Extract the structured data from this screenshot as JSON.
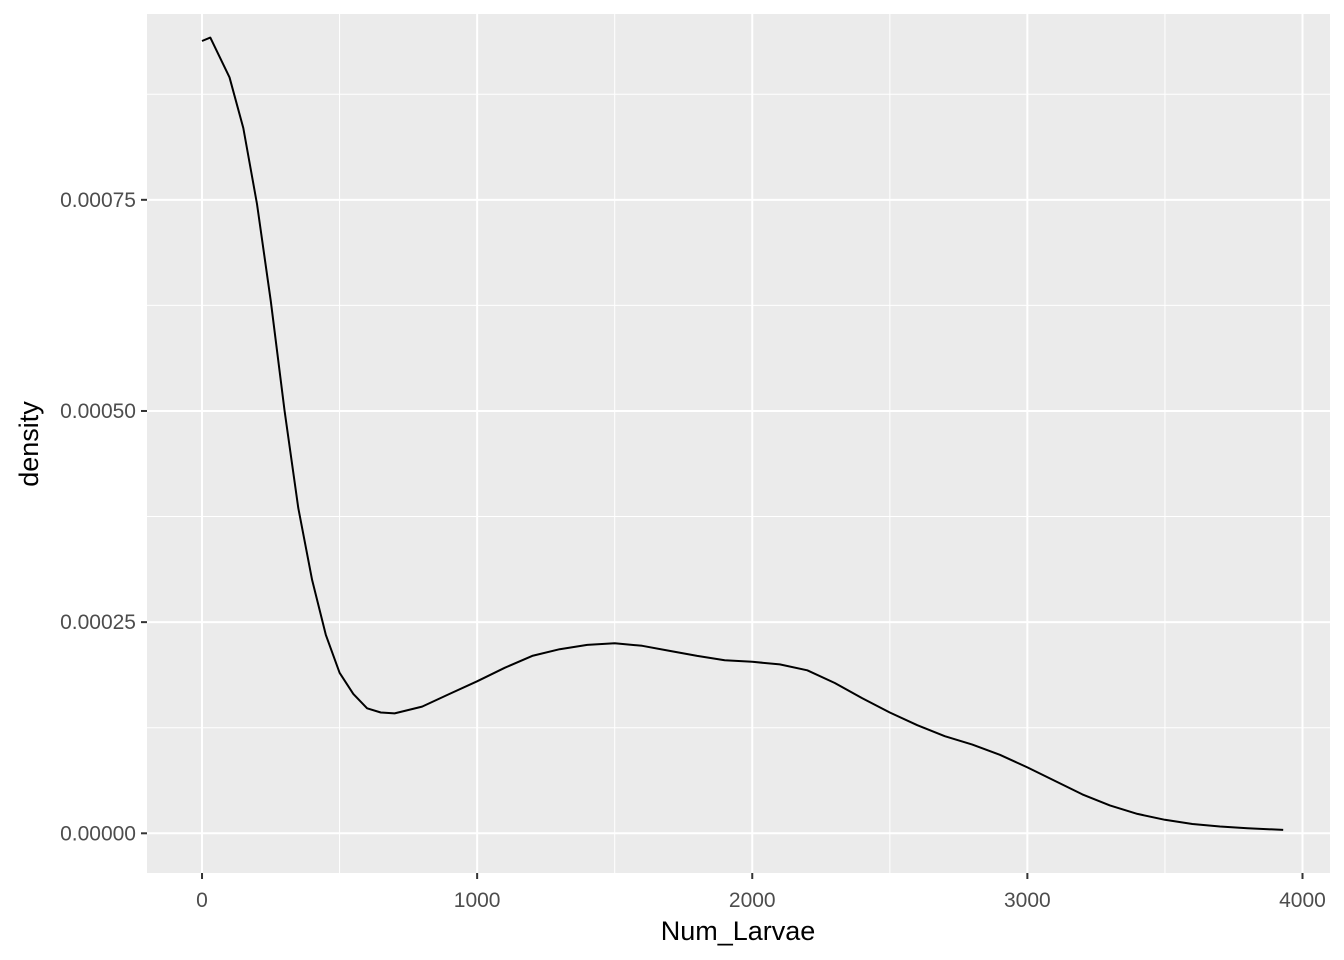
{
  "chart_data": {
    "type": "line",
    "title": "",
    "xlabel": "Num_Larvae",
    "ylabel": "density",
    "xlim": [
      -200,
      4100
    ],
    "ylim": [
      -4.7e-05,
      0.00097
    ],
    "x_ticks": [
      0,
      1000,
      2000,
      3000,
      4000
    ],
    "x_tick_labels": [
      "0",
      "1000",
      "2000",
      "3000",
      "4000"
    ],
    "x_minor_ticks": [
      500,
      1500,
      2500,
      3500
    ],
    "y_ticks": [
      0,
      0.00025,
      0.0005,
      0.00075
    ],
    "y_tick_labels": [
      "0.00000",
      "0.00025",
      "0.00050",
      "0.00075"
    ],
    "y_minor_ticks": [
      0.000125,
      0.000375,
      0.000625,
      0.000875
    ],
    "grid": true,
    "series": [
      {
        "x": [
          0,
          30,
          100,
          150,
          200,
          250,
          300,
          350,
          400,
          450,
          500,
          550,
          600,
          650,
          700,
          800,
          900,
          1000,
          1100,
          1200,
          1300,
          1400,
          1500,
          1600,
          1700,
          1800,
          1900,
          2000,
          2100,
          2200,
          2300,
          2400,
          2500,
          2600,
          2700,
          2800,
          2900,
          3000,
          3100,
          3200,
          3300,
          3400,
          3500,
          3600,
          3700,
          3800,
          3930
        ],
        "y": [
          0.000938,
          0.000942,
          0.000895,
          0.000835,
          0.000745,
          0.00063,
          0.0005,
          0.000385,
          0.0003,
          0.000235,
          0.00019,
          0.000165,
          0.000148,
          0.000143,
          0.000142,
          0.00015,
          0.000165,
          0.00018,
          0.000196,
          0.00021,
          0.000218,
          0.000223,
          0.000225,
          0.000222,
          0.000216,
          0.00021,
          0.000205,
          0.000203,
          0.0002,
          0.000193,
          0.000178,
          0.00016,
          0.000143,
          0.000128,
          0.000115,
          0.000105,
          9.3e-05,
          7.8e-05,
          6.2e-05,
          4.6e-05,
          3.3e-05,
          2.3e-05,
          1.6e-05,
          1.1e-05,
          8e-06,
          6e-06,
          4e-06
        ],
        "color": "#000000"
      }
    ],
    "panel_background": "#ebebeb",
    "grid_color": "#ffffff"
  }
}
